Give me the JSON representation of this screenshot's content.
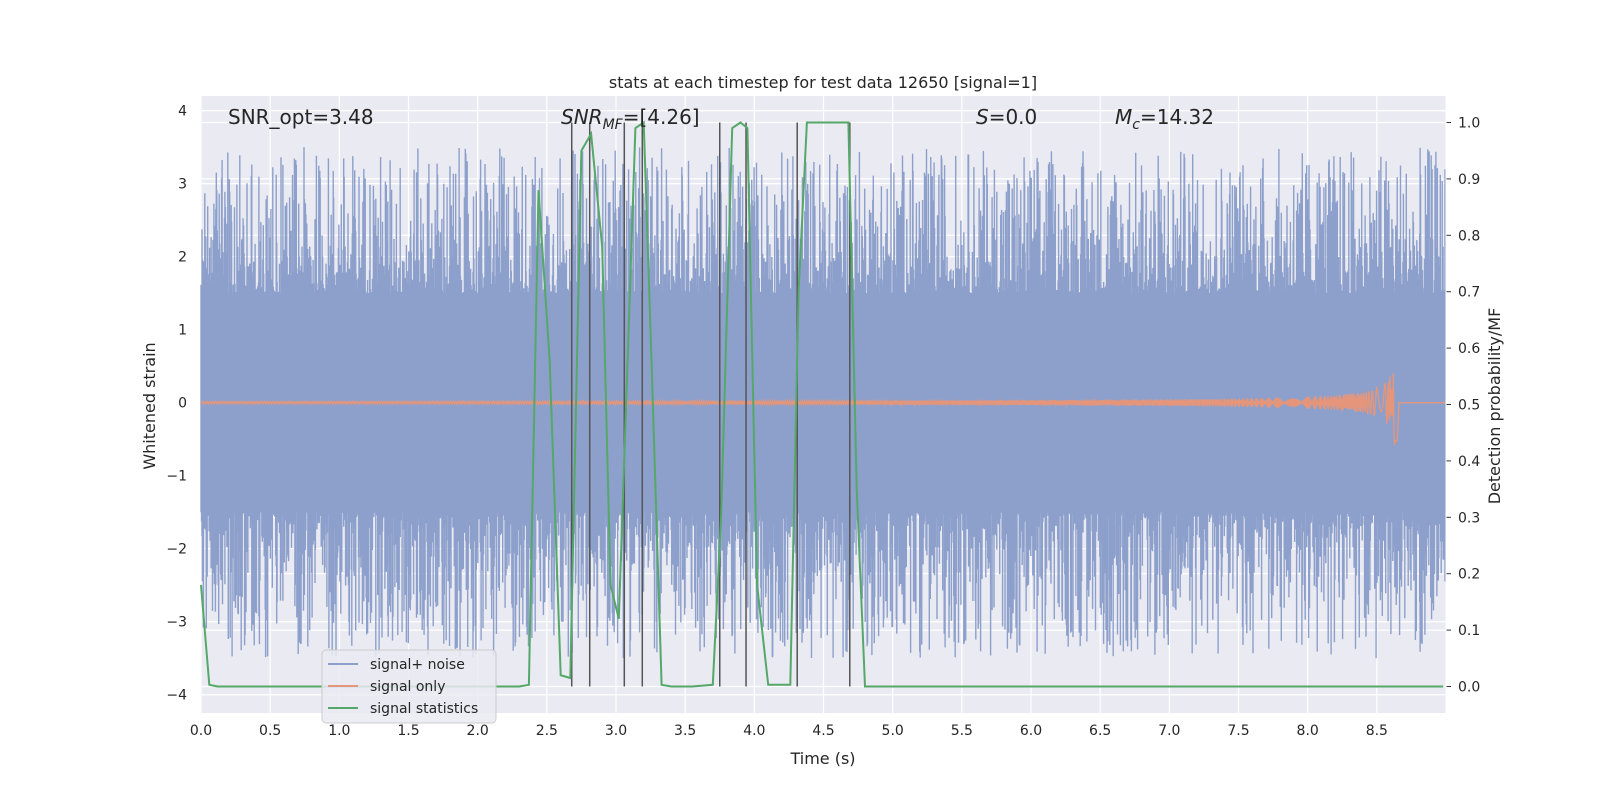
{
  "chart_data": {
    "type": "line",
    "title": "stats at each timestep for test data 12650 [signal=1]",
    "xlabel": "Time (s)",
    "ylabel": "Whitened strain",
    "y2label": "Detection probability/MF",
    "xlim": [
      0.0,
      9.0
    ],
    "ylim": [
      -4.25,
      4.2
    ],
    "y2lim": [
      -0.047,
      1.047
    ],
    "grid": true,
    "legend_position": "lower-left",
    "x_ticks": [
      "0.0",
      "0.5",
      "1.0",
      "1.5",
      "2.0",
      "2.5",
      "3.0",
      "3.5",
      "4.0",
      "4.5",
      "5.0",
      "5.5",
      "6.0",
      "6.5",
      "7.0",
      "7.5",
      "8.0",
      "8.5"
    ],
    "y_ticks": [
      "−4",
      "−3",
      "−2",
      "−1",
      "0",
      "1",
      "2",
      "3",
      "4"
    ],
    "y2_ticks": [
      "0.0",
      "0.1",
      "0.2",
      "0.3",
      "0.4",
      "0.5",
      "0.6",
      "0.7",
      "0.8",
      "0.9",
      "1.0"
    ],
    "annotations": {
      "snr_opt": "SNR_opt=3.48",
      "snr_mf_sym": "SNR",
      "snr_mf_sub": "MF",
      "snr_mf_val": "=[4.26]",
      "s_sym": "S",
      "s_val": "=0.0",
      "mc_sym": "M",
      "mc_sub": "c",
      "mc_val": "=14.32"
    },
    "series": [
      {
        "name": "signal+ noise",
        "color": "#8da0cb",
        "axis": "left",
        "description_range": [
          -3.6,
          3.6
        ],
        "envelope_core": 1.5
      },
      {
        "name": "signal only",
        "color": "#e5967a",
        "axis": "left",
        "chirp_peak_time": 8.65,
        "chirp_peak_amplitude": 0.68
      },
      {
        "name": "signal statistics",
        "color": "#55a868",
        "axis": "right",
        "x": [
          0.0,
          0.06,
          0.12,
          0.5,
          1.0,
          1.5,
          2.0,
          2.3,
          2.37,
          2.44,
          2.52,
          2.6,
          2.67,
          2.75,
          2.82,
          2.9,
          2.96,
          3.02,
          3.08,
          3.14,
          3.2,
          3.26,
          3.33,
          3.4,
          3.55,
          3.7,
          3.76,
          3.84,
          3.9,
          3.95,
          4.02,
          4.1,
          4.18,
          4.26,
          4.32,
          4.38,
          4.46,
          4.55,
          4.68,
          4.74,
          4.8,
          5.0,
          6.0,
          7.0,
          8.0,
          8.98
        ],
        "y": [
          0.18,
          0.003,
          0.0,
          0.0,
          0.0,
          0.0,
          0.0,
          0.0,
          0.003,
          0.88,
          0.58,
          0.02,
          0.015,
          0.95,
          0.98,
          0.78,
          0.18,
          0.12,
          0.55,
          0.99,
          1.0,
          0.55,
          0.003,
          0.0,
          0.0,
          0.003,
          0.3,
          0.99,
          1.0,
          0.99,
          0.18,
          0.003,
          0.003,
          0.003,
          0.7,
          1.0,
          1.0,
          1.0,
          1.0,
          0.35,
          0.0,
          0.0,
          0.0,
          0.0,
          0.0,
          0.0
        ]
      }
    ],
    "vertical_lines_x": [
      2.68,
      2.81,
      3.06,
      3.19,
      3.75,
      3.94,
      4.31,
      4.69
    ]
  }
}
